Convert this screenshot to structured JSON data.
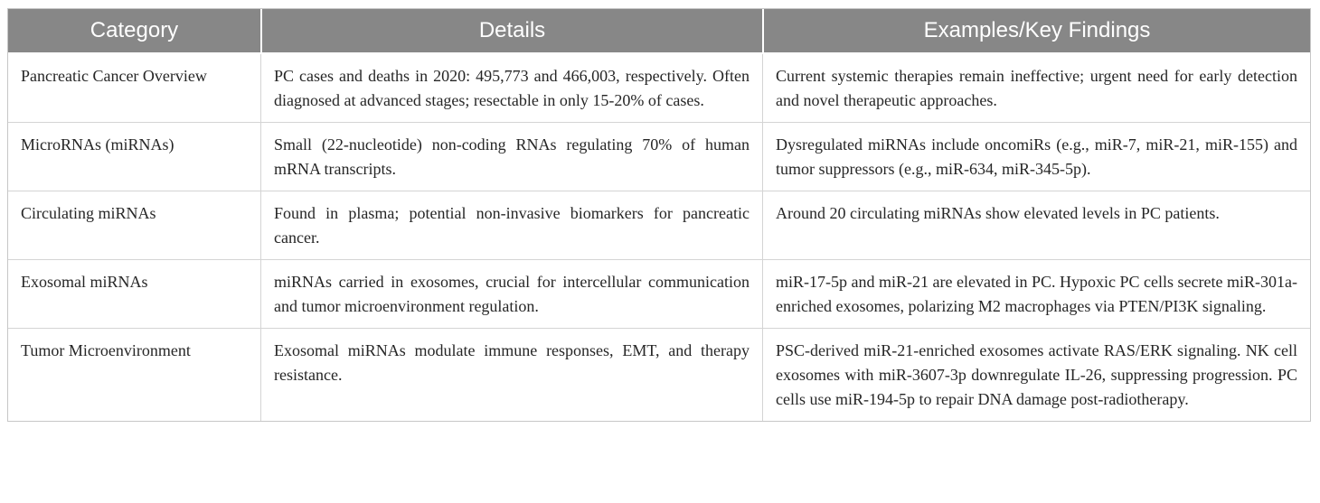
{
  "colors": {
    "header_bg": "#878787",
    "header_text": "#ffffff",
    "body_text": "#262626",
    "border_outer": "#c7c7c7",
    "border_inner": "#d4d4d4",
    "row_bg": "#ffffff"
  },
  "table": {
    "columns": [
      {
        "label": "Category"
      },
      {
        "label": "Details"
      },
      {
        "label": "Examples/Key Findings"
      }
    ],
    "rows": [
      {
        "category": "Pancreatic Cancer Overview",
        "details": "PC cases and deaths in 2020: 495,773 and 466,003, respectively. Often diagnosed at advanced stages; resectable in only 15-20% of cases.",
        "findings": "Current systemic therapies remain ineffective; urgent need for early detection and novel therapeutic approaches."
      },
      {
        "category": "MicroRNAs (miRNAs)",
        "details": "Small (22-nucleotide) non-coding RNAs regulating 70% of human mRNA transcripts.",
        "findings": "Dysregulated miRNAs include oncomiRs (e.g., miR-7, miR-21, miR-155) and tumor suppressors (e.g., miR-634, miR-345-5p)."
      },
      {
        "category": "Circulating miRNAs",
        "details": "Found in plasma; potential non-invasive biomarkers for pancreatic cancer.",
        "findings": "Around 20 circulating miRNAs show elevated levels in PC patients."
      },
      {
        "category": "Exosomal miRNAs",
        "details": "miRNAs carried in exosomes, crucial for intercellular communication and tumor microenvironment regulation.",
        "findings": "miR-17-5p and miR-21 are elevated in PC. Hypoxic PC cells secrete miR-301a-enriched exosomes, polarizing M2 macrophages via PTEN/PI3K signaling."
      },
      {
        "category": "Tumor Microenvironment",
        "details": "Exosomal miRNAs modulate immune responses, EMT, and therapy resistance.",
        "findings": "PSC-derived miR-21-enriched exosomes activate RAS/ERK signaling. NK cell exosomes with miR-3607-3p downregulate IL-26, suppressing progression. PC cells use miR-194-5p to repair DNA damage post-radiotherapy."
      }
    ]
  }
}
